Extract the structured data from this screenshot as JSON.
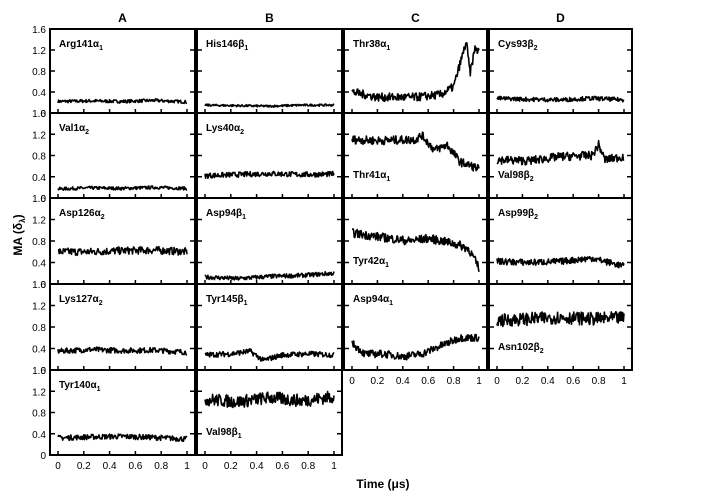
{
  "figure": {
    "ylabel_main": "MA (δ",
    "ylabel_sub": "λ",
    "ylabel_close": ")",
    "xlabel": "Time  (μs)"
  },
  "chart_data": {
    "type": "line",
    "columns": [
      "A",
      "B",
      "C",
      "D"
    ],
    "ylim": [
      0,
      1.6
    ],
    "xlim": [
      0,
      1
    ],
    "yticks": [
      "0",
      "0.4",
      "0.8",
      "1.2",
      "1.6"
    ],
    "xticks": [
      "0",
      "0.2",
      "0.4",
      "0.6",
      "0.8",
      "1"
    ],
    "line_color": "#000000",
    "panels": [
      {
        "col": 0,
        "row": 0,
        "name": "Arg141",
        "sub": "1",
        "greek": "α",
        "label_pos": "top",
        "x": [
          0,
          0.25,
          0.5,
          0.75,
          1
        ],
        "y": [
          0.22,
          0.23,
          0.22,
          0.24,
          0.21
        ],
        "noise": 0.03
      },
      {
        "col": 0,
        "row": 1,
        "name": "Val1",
        "sub": "2",
        "greek": "α",
        "label_pos": "top",
        "x": [
          0,
          0.25,
          0.5,
          0.75,
          1
        ],
        "y": [
          0.17,
          0.19,
          0.18,
          0.2,
          0.18
        ],
        "noise": 0.03
      },
      {
        "col": 0,
        "row": 2,
        "name": "Asp126",
        "sub": "2",
        "greek": "α",
        "label_pos": "top",
        "x": [
          0,
          0.25,
          0.5,
          0.75,
          1
        ],
        "y": [
          0.6,
          0.6,
          0.62,
          0.63,
          0.6
        ],
        "noise": 0.07
      },
      {
        "col": 0,
        "row": 3,
        "name": "Lys127",
        "sub": "2",
        "greek": "α",
        "label_pos": "top",
        "x": [
          0,
          0.25,
          0.5,
          0.75,
          1
        ],
        "y": [
          0.35,
          0.38,
          0.36,
          0.37,
          0.33
        ],
        "noise": 0.05
      },
      {
        "col": 0,
        "row": 4,
        "name": "Tyr140",
        "sub": "1",
        "greek": "α",
        "label_pos": "top",
        "x": [
          0,
          0.25,
          0.5,
          0.75,
          1
        ],
        "y": [
          0.32,
          0.34,
          0.35,
          0.33,
          0.3
        ],
        "noise": 0.05
      },
      {
        "col": 1,
        "row": 0,
        "name": "His146",
        "sub": "1",
        "greek": "β",
        "label_pos": "top",
        "x": [
          0,
          0.25,
          0.5,
          0.75,
          1
        ],
        "y": [
          0.15,
          0.14,
          0.13,
          0.15,
          0.15
        ],
        "noise": 0.02
      },
      {
        "col": 1,
        "row": 1,
        "name": "Lys40",
        "sub": "2",
        "greek": "α",
        "label_pos": "top",
        "x": [
          0,
          0.25,
          0.5,
          0.75,
          1
        ],
        "y": [
          0.42,
          0.44,
          0.46,
          0.44,
          0.45
        ],
        "noise": 0.05
      },
      {
        "col": 1,
        "row": 2,
        "name": "Asp94",
        "sub": "1",
        "greek": "β",
        "label_pos": "top",
        "x": [
          0,
          0.25,
          0.5,
          0.75,
          1
        ],
        "y": [
          0.13,
          0.1,
          0.14,
          0.16,
          0.2
        ],
        "noise": 0.04
      },
      {
        "col": 1,
        "row": 3,
        "name": "Tyr145",
        "sub": "1",
        "greek": "β",
        "label_pos": "top",
        "x": [
          0,
          0.2,
          0.35,
          0.45,
          0.6,
          0.8,
          1
        ],
        "y": [
          0.28,
          0.3,
          0.35,
          0.18,
          0.28,
          0.3,
          0.28
        ],
        "noise": 0.05
      },
      {
        "col": 1,
        "row": 4,
        "name": "Val98",
        "sub": "1",
        "greek": "β",
        "label_pos": "bottom",
        "x": [
          0,
          0.25,
          0.5,
          0.75,
          1
        ],
        "y": [
          1.05,
          1.0,
          1.08,
          1.02,
          1.1
        ],
        "noise": 0.12
      },
      {
        "col": 2,
        "row": 0,
        "name": "Thr38",
        "sub": "1",
        "greek": "α",
        "label_pos": "top",
        "x": [
          0,
          0.2,
          0.5,
          0.7,
          0.8,
          0.87,
          0.9,
          0.93,
          0.97,
          1
        ],
        "y": [
          0.4,
          0.3,
          0.3,
          0.35,
          0.5,
          1.1,
          1.35,
          0.75,
          1.25,
          1.15
        ],
        "noise": 0.08
      },
      {
        "col": 2,
        "row": 1,
        "name": "Thr41",
        "sub": "1",
        "greek": "α",
        "label_pos": "bottom",
        "x": [
          0,
          0.2,
          0.5,
          0.55,
          0.65,
          0.75,
          0.85,
          1
        ],
        "y": [
          1.1,
          1.08,
          1.1,
          1.18,
          0.9,
          1.0,
          0.68,
          0.55
        ],
        "noise": 0.08
      },
      {
        "col": 2,
        "row": 2,
        "name": "Tyr42",
        "sub": "1",
        "greek": "α",
        "label_pos": "bottom",
        "x": [
          0,
          0.2,
          0.45,
          0.6,
          0.75,
          0.85,
          0.92,
          1
        ],
        "y": [
          0.95,
          0.88,
          0.8,
          0.85,
          0.78,
          0.72,
          0.65,
          0.3
        ],
        "noise": 0.08
      },
      {
        "col": 2,
        "row": 3,
        "name": "Asp94",
        "sub": "1",
        "greek": "α",
        "label_pos": "top",
        "x": [
          0,
          0.1,
          0.25,
          0.4,
          0.55,
          0.7,
          0.85,
          1
        ],
        "y": [
          0.5,
          0.3,
          0.3,
          0.25,
          0.3,
          0.45,
          0.6,
          0.6
        ],
        "noise": 0.07
      },
      {
        "col": 3,
        "row": 0,
        "name": "Cys93",
        "sub": "2",
        "greek": "β",
        "label_pos": "top",
        "x": [
          0,
          0.25,
          0.5,
          0.75,
          1
        ],
        "y": [
          0.28,
          0.26,
          0.25,
          0.28,
          0.25
        ],
        "noise": 0.04
      },
      {
        "col": 3,
        "row": 1,
        "name": "Val98",
        "sub": "2",
        "greek": "β",
        "label_pos": "bottom",
        "x": [
          0,
          0.25,
          0.5,
          0.75,
          0.8,
          0.85,
          1
        ],
        "y": [
          0.72,
          0.7,
          0.78,
          0.8,
          1.0,
          0.72,
          0.78
        ],
        "noise": 0.08
      },
      {
        "col": 3,
        "row": 2,
        "name": "Asp99",
        "sub": "2",
        "greek": "β",
        "label_pos": "top",
        "x": [
          0,
          0.25,
          0.5,
          0.75,
          1
        ],
        "y": [
          0.42,
          0.4,
          0.42,
          0.48,
          0.33
        ],
        "noise": 0.06
      },
      {
        "col": 3,
        "row": 3,
        "name": "Asn102",
        "sub": "2",
        "greek": "β",
        "label_pos": "bottom",
        "x": [
          0,
          0.25,
          0.5,
          0.75,
          1
        ],
        "y": [
          0.92,
          0.95,
          0.98,
          0.95,
          0.97
        ],
        "noise": 0.12
      }
    ]
  }
}
